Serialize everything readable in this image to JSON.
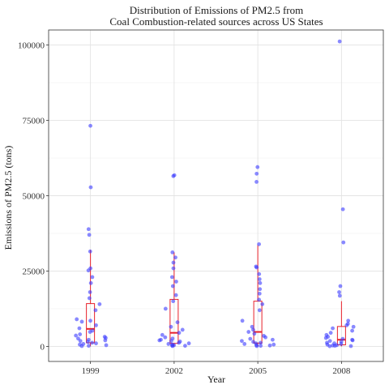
{
  "chart_data": {
    "type": "scatter",
    "title_lines": [
      "Distribution of Emissions of PM2.5 from",
      "Coal Combustion-related sources across US States"
    ],
    "xlabel": "Year",
    "ylabel": "Emissions of PM2.5 (tons)",
    "categories": [
      "1999",
      "2002",
      "2005",
      "2008"
    ],
    "ylim": [
      -5000,
      105000
    ],
    "yticks": [
      0,
      25000,
      50000,
      75000,
      100000
    ],
    "ytick_labels": [
      "0",
      "25000",
      "50000",
      "75000",
      "100000"
    ],
    "grid": true,
    "legend": "none",
    "point_color": "#3b3bff",
    "box_color": "#e8202a",
    "boxes": [
      {
        "category": "1999",
        "q1": 1200,
        "median": 5800,
        "q3": 14200,
        "whisker_low": 0,
        "whisker_high": 32000
      },
      {
        "category": "2002",
        "q1": 1000,
        "median": 4500,
        "q3": 15600,
        "whisker_low": 0,
        "whisker_high": 31200
      },
      {
        "category": "2005",
        "q1": 1100,
        "median": 4800,
        "q3": 15000,
        "whisker_low": 0,
        "whisker_high": 33600
      },
      {
        "category": "2008",
        "q1": 500,
        "median": 2200,
        "q3": 6600,
        "whisker_low": 0,
        "whisker_high": 15000
      }
    ],
    "points": [
      {
        "category": "1999",
        "values": [
          73200,
          52800,
          38900,
          37000,
          31500,
          25900,
          25200,
          23000,
          21000,
          18000,
          16000,
          14000,
          12000,
          9000,
          8500,
          8200,
          7000,
          6000,
          5200,
          4800,
          4000,
          3600,
          3200,
          2800,
          2600,
          2200,
          2000,
          1800,
          1500,
          1200,
          1000,
          800,
          600,
          400,
          200,
          100
        ]
      },
      {
        "category": "2002",
        "values": [
          56800,
          56500,
          31200,
          29500,
          27800,
          25900,
          23000,
          21500,
          20000,
          17000,
          15000,
          12500,
          8000,
          6500,
          5500,
          4500,
          3800,
          3000,
          2600,
          2200,
          2000,
          1800,
          1600,
          1200,
          1000,
          800,
          600,
          400,
          300,
          200,
          100
        ]
      },
      {
        "category": "2005",
        "values": [
          59500,
          57300,
          54600,
          33900,
          26500,
          26200,
          24000,
          22300,
          21000,
          19000,
          17500,
          15500,
          14000,
          12000,
          8500,
          6500,
          5500,
          4800,
          4200,
          3500,
          3000,
          2500,
          2200,
          1800,
          1500,
          1200,
          1000,
          800,
          600,
          400,
          300,
          200,
          100
        ]
      },
      {
        "category": "2008",
        "values": [
          101200,
          45500,
          34500,
          20000,
          18000,
          16800,
          8500,
          7500,
          7000,
          6500,
          6000,
          5200,
          4500,
          3800,
          3200,
          2800,
          2500,
          2200,
          2000,
          1800,
          1500,
          1200,
          1000,
          800,
          600,
          400,
          300,
          200,
          100,
          50
        ]
      }
    ]
  }
}
